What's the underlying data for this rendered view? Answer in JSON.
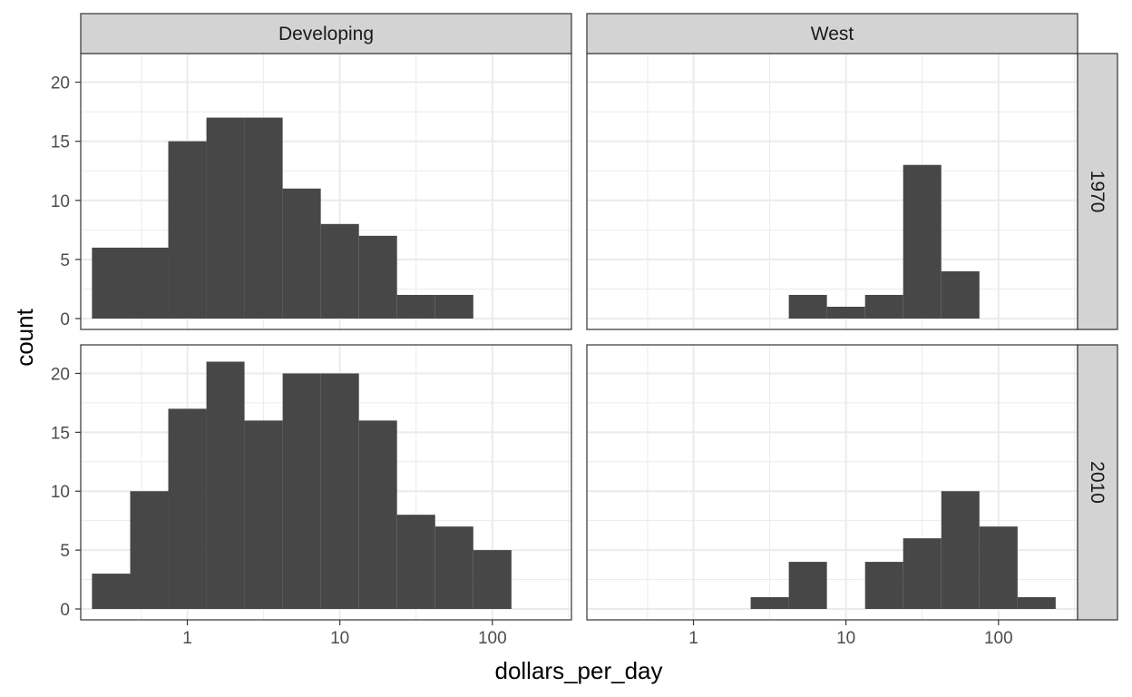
{
  "chart_data": {
    "type": "bar",
    "subtype": "faceted-histogram",
    "xlabel": "dollars_per_day",
    "ylabel": "count",
    "x_scale": "log10",
    "xlim": [
      0.2,
      330
    ],
    "ylim": [
      0,
      21.5
    ],
    "x_ticks": [
      1,
      10,
      100
    ],
    "x_tick_labels": [
      "1",
      "10",
      "100"
    ],
    "y_ticks": [
      0,
      5,
      10,
      15,
      20
    ],
    "y_tick_labels": [
      "0",
      "5",
      "10",
      "15",
      "20"
    ],
    "grid": true,
    "column_facets": [
      "Developing",
      "West"
    ],
    "row_facets": [
      "1970",
      "2010"
    ],
    "bin_width_log10": 0.25,
    "bin_edges": [
      0.237,
      0.422,
      0.75,
      1.334,
      2.371,
      4.217,
      7.499,
      13.34,
      23.71,
      42.17,
      74.99,
      133.4,
      237.1
    ],
    "facets": [
      {
        "column": "Developing",
        "row": "1970",
        "counts": [
          6,
          6,
          15,
          17,
          17,
          11,
          8,
          7,
          2,
          2,
          0,
          0
        ]
      },
      {
        "column": "West",
        "row": "1970",
        "counts": [
          0,
          0,
          0,
          0,
          0,
          2,
          1,
          2,
          13,
          4,
          0,
          0
        ]
      },
      {
        "column": "Developing",
        "row": "2010",
        "counts": [
          3,
          10,
          17,
          21,
          16,
          20,
          20,
          16,
          8,
          7,
          5,
          0
        ]
      },
      {
        "column": "West",
        "row": "2010",
        "counts": [
          0,
          0,
          0,
          0,
          1,
          4,
          0,
          4,
          6,
          10,
          7,
          1
        ]
      }
    ],
    "bar_color": "#474747",
    "strip_color": "#d3d3d3"
  }
}
